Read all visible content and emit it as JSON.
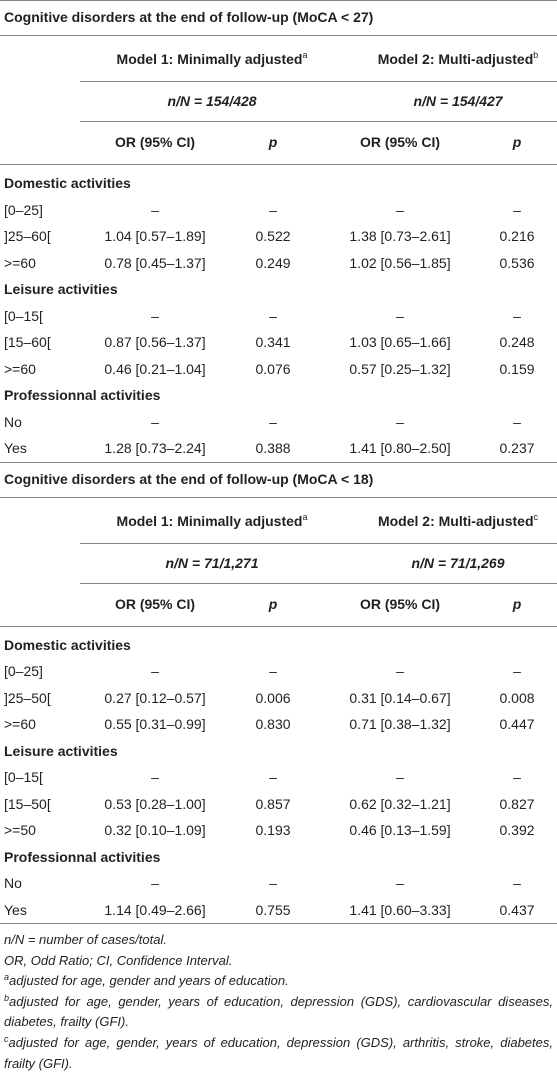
{
  "sections": [
    {
      "title": "Cognitive disorders at the end of follow-up (MoCA < 27)",
      "models": [
        {
          "name": "Model 1: Minimally adjusted",
          "sup": "a",
          "nN": "n/N = 154/428"
        },
        {
          "name": "Model 2: Multi-adjusted",
          "sup": "b",
          "nN": "n/N = 154/427"
        }
      ],
      "columns": [
        "OR (95% CI)",
        "p",
        "OR (95% CI)",
        "p"
      ],
      "groups": [
        {
          "name": "Domestic activities",
          "rows": [
            [
              "[0–25]",
              "–",
              "–",
              "–",
              "–"
            ],
            [
              "]25–60[",
              "1.04 [0.57–1.89]",
              "0.522",
              "1.38 [0.73–2.61]",
              "0.216"
            ],
            [
              ">=60",
              "0.78 [0.45–1.37]",
              "0.249",
              "1.02 [0.56–1.85]",
              "0.536"
            ]
          ]
        },
        {
          "name": "Leisure activities",
          "rows": [
            [
              "[0–15[",
              "–",
              "–",
              "–",
              "–"
            ],
            [
              "[15–60[",
              "0.87 [0.56–1.37]",
              "0.341",
              "1.03 [0.65–1.66]",
              "0.248"
            ],
            [
              ">=60",
              "0.46 [0.21–1.04]",
              "0.076",
              "0.57 [0.25–1.32]",
              "0.159"
            ]
          ]
        },
        {
          "name": "Professionnal activities",
          "rows": [
            [
              "No",
              "–",
              "–",
              "–",
              "–"
            ],
            [
              "Yes",
              "1.28 [0.73–2.24]",
              "0.388",
              "1.41 [0.80–2.50]",
              "0.237"
            ]
          ]
        }
      ]
    },
    {
      "title": "Cognitive disorders at the end of follow-up (MoCA < 18)",
      "models": [
        {
          "name": "Model 1: Minimally adjusted",
          "sup": "a",
          "nN": "n/N = 71/1,271"
        },
        {
          "name": "Model 2: Multi-adjusted",
          "sup": "c",
          "nN": "n/N = 71/1,269"
        }
      ],
      "columns": [
        "OR (95% CI)",
        "p",
        "OR (95% CI)",
        "p"
      ],
      "groups": [
        {
          "name": "Domestic activities",
          "rows": [
            [
              "[0–25]",
              "–",
              "–",
              "–",
              "–"
            ],
            [
              "]25–50[",
              "0.27 [0.12–0.57]",
              "0.006",
              "0.31 [0.14–0.67]",
              "0.008"
            ],
            [
              ">=60",
              "0.55 [0.31–0.99]",
              "0.830",
              "0.71 [0.38–1.32]",
              "0.447"
            ]
          ]
        },
        {
          "name": "Leisure activities",
          "rows": [
            [
              "[0–15[",
              "–",
              "–",
              "–",
              "–"
            ],
            [
              "[15–50[",
              "0.53 [0.28–1.00]",
              "0.857",
              "0.62 [0.32–1.21]",
              "0.827"
            ],
            [
              ">=50",
              "0.32 [0.10–1.09]",
              "0.193",
              "0.46 [0.13–1.59]",
              "0.392"
            ]
          ]
        },
        {
          "name": "Professionnal activities",
          "rows": [
            [
              "No",
              "–",
              "–",
              "–",
              "–"
            ],
            [
              "Yes",
              "1.14 [0.49–2.66]",
              "0.755",
              "1.41 [0.60–3.33]",
              "0.437"
            ]
          ]
        }
      ]
    }
  ],
  "footnotes": [
    {
      "text": "n/N = number of cases/total."
    },
    {
      "text": "OR, Odd Ratio; CI, Confidence Interval."
    },
    {
      "sup": "a",
      "text": "adjusted for age, gender and years of education."
    },
    {
      "sup": "b",
      "text": "adjusted for age, gender, years of education, depression (GDS), cardiovascular diseases, diabetes, frailty (GFI)."
    },
    {
      "sup": "c",
      "text": "adjusted for age, gender, years of education, depression (GDS), arthritis, stroke, diabetes, frailty (GFI)."
    }
  ]
}
